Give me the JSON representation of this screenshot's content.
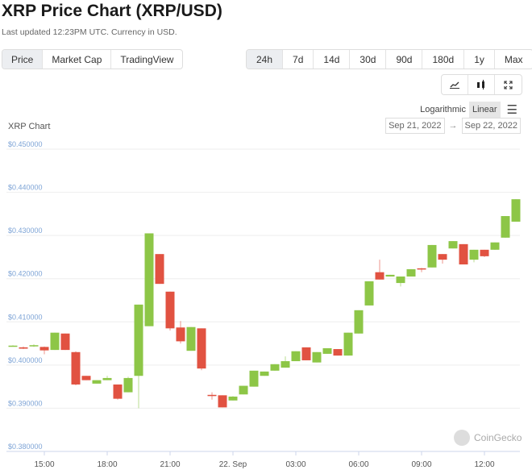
{
  "header": {
    "title": "XRP Price Chart (XRP/USD)",
    "subtitle": "Last updated 12:23PM UTC. Currency in USD."
  },
  "view_tabs": [
    {
      "label": "Price",
      "active": true
    },
    {
      "label": "Market Cap"
    },
    {
      "label": "TradingView"
    }
  ],
  "range_tabs": [
    {
      "label": "24h",
      "active": true
    },
    {
      "label": "7d"
    },
    {
      "label": "14d"
    },
    {
      "label": "30d"
    },
    {
      "label": "90d"
    },
    {
      "label": "180d"
    },
    {
      "label": "1y"
    },
    {
      "label": "Max"
    }
  ],
  "chart_tools": [
    {
      "icon": "line-chart-icon",
      "glyph": "📈"
    },
    {
      "icon": "candlestick-icon",
      "glyph": "▮"
    },
    {
      "icon": "fullscreen-icon",
      "glyph": "⛶"
    }
  ],
  "scale": {
    "log_label": "Logarithmic",
    "linear_label": "Linear",
    "active": "Linear",
    "menu_icon": "hamburger-menu-icon"
  },
  "chart_label": "XRP Chart",
  "date_range": {
    "from": "Sep 21, 2022",
    "to": "Sep 22, 2022",
    "arrow": "→"
  },
  "watermark": "CoinGecko",
  "colors": {
    "up": "#8dc647",
    "down": "#e15241",
    "axis_label": "#7ea4d6",
    "grid": "#eeeeee"
  },
  "chart_data": {
    "type": "candlestick",
    "interval": "30m",
    "ylim": [
      0.38,
      0.45
    ],
    "yticks": [
      "$0.380000",
      "$0.390000",
      "$0.400000",
      "$0.410000",
      "$0.420000",
      "$0.430000",
      "$0.440000",
      "$0.450000"
    ],
    "xticks": [
      {
        "t": "15:00",
        "h": 15
      },
      {
        "t": "18:00",
        "h": 18
      },
      {
        "t": "21:00",
        "h": 21
      },
      {
        "t": "22. Sep",
        "h": 24
      },
      {
        "t": "03:00",
        "h": 27
      },
      {
        "t": "06:00",
        "h": 30
      },
      {
        "t": "09:00",
        "h": 33
      },
      {
        "t": "12:00",
        "h": 36
      }
    ],
    "grid": true,
    "first_candle_hour": 13.5,
    "candles": [
      [
        0.4045,
        0.4046,
        0.4044,
        0.4045
      ],
      [
        0.4041,
        0.4043,
        0.4037,
        0.4038
      ],
      [
        0.4044,
        0.4048,
        0.4042,
        0.4046
      ],
      [
        0.4042,
        0.4043,
        0.4025,
        0.4034
      ],
      [
        0.4035,
        0.4075,
        0.4035,
        0.4075
      ],
      [
        0.4073,
        0.4073,
        0.4035,
        0.4035
      ],
      [
        0.403,
        0.4032,
        0.3953,
        0.3955
      ],
      [
        0.3975,
        0.3975,
        0.3965,
        0.3965
      ],
      [
        0.3957,
        0.3965,
        0.3957,
        0.3965
      ],
      [
        0.3965,
        0.3975,
        0.3965,
        0.397
      ],
      [
        0.3955,
        0.3955,
        0.392,
        0.3922
      ],
      [
        0.3937,
        0.3973,
        0.3937,
        0.397
      ],
      [
        0.3975,
        0.414,
        0.39,
        0.414
      ],
      [
        0.409,
        0.4305,
        0.409,
        0.4305
      ],
      [
        0.4257,
        0.4257,
        0.4188,
        0.4188
      ],
      [
        0.417,
        0.417,
        0.408,
        0.4085
      ],
      [
        0.4087,
        0.4102,
        0.405,
        0.4055
      ],
      [
        0.4033,
        0.4088,
        0.4033,
        0.4088
      ],
      [
        0.4085,
        0.4085,
        0.3988,
        0.3992
      ],
      [
        0.3931,
        0.3937,
        0.392,
        0.3929
      ],
      [
        0.393,
        0.393,
        0.3902,
        0.3902
      ],
      [
        0.3918,
        0.3928,
        0.3918,
        0.3927
      ],
      [
        0.3932,
        0.3952,
        0.3932,
        0.3952
      ],
      [
        0.395,
        0.3987,
        0.395,
        0.3987
      ],
      [
        0.3975,
        0.3985,
        0.3975,
        0.3985
      ],
      [
        0.3987,
        0.4002,
        0.3987,
        0.4002
      ],
      [
        0.3994,
        0.402,
        0.3994,
        0.4009
      ],
      [
        0.4009,
        0.4032,
        0.4009,
        0.4032
      ],
      [
        0.4041,
        0.4041,
        0.4011,
        0.4011
      ],
      [
        0.4006,
        0.403,
        0.4006,
        0.403
      ],
      [
        0.4026,
        0.4039,
        0.4026,
        0.4039
      ],
      [
        0.4037,
        0.4037,
        0.4022,
        0.4022
      ],
      [
        0.4022,
        0.4075,
        0.4022,
        0.4075
      ],
      [
        0.4073,
        0.4127,
        0.4073,
        0.4127
      ],
      [
        0.4138,
        0.4194,
        0.4138,
        0.4194
      ],
      [
        0.4215,
        0.4244,
        0.4198,
        0.4198
      ],
      [
        0.4205,
        0.4209,
        0.4205,
        0.4209
      ],
      [
        0.419,
        0.4205,
        0.4182,
        0.4205
      ],
      [
        0.4205,
        0.4222,
        0.4205,
        0.4222
      ],
      [
        0.4224,
        0.4225,
        0.4215,
        0.4222
      ],
      [
        0.4226,
        0.4278,
        0.4226,
        0.4278
      ],
      [
        0.4257,
        0.4257,
        0.4235,
        0.4244
      ],
      [
        0.427,
        0.4287,
        0.427,
        0.4287
      ],
      [
        0.428,
        0.428,
        0.4233,
        0.4233
      ],
      [
        0.4244,
        0.4267,
        0.4238,
        0.4267
      ],
      [
        0.4267,
        0.4267,
        0.425,
        0.4252
      ],
      [
        0.4267,
        0.4284,
        0.4267,
        0.4284
      ],
      [
        0.4295,
        0.4345,
        0.4295,
        0.4345
      ],
      [
        0.4332,
        0.4384,
        0.4332,
        0.4384
      ]
    ]
  }
}
